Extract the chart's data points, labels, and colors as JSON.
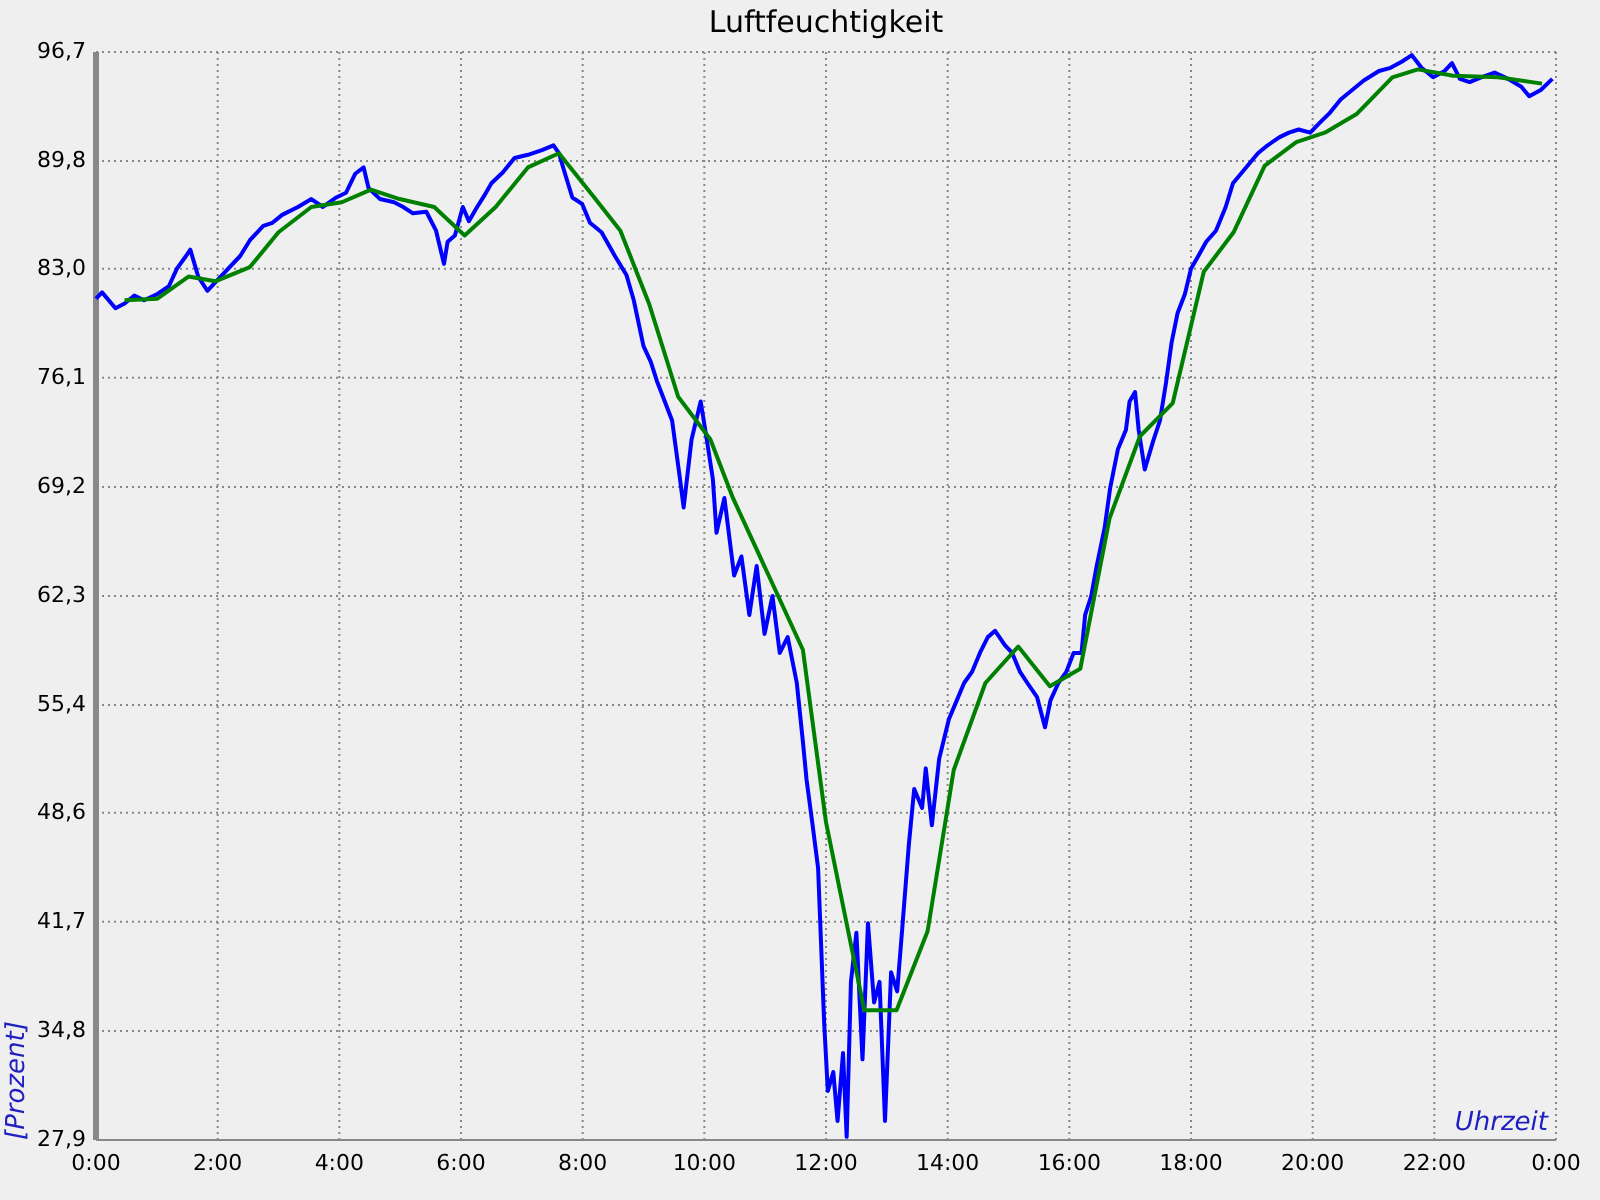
{
  "chart_data": {
    "type": "line",
    "title": "Luftfeuchtigkeit",
    "xlabel": "Uhrzeit",
    "ylabel": "[Prozent]",
    "xlim": [
      0,
      24
    ],
    "ylim": [
      27.9,
      96.7
    ],
    "grid": true,
    "xticks": [
      {
        "value": 0,
        "label": "0:00"
      },
      {
        "value": 2,
        "label": "2:00"
      },
      {
        "value": 4,
        "label": "4:00"
      },
      {
        "value": 6,
        "label": "6:00"
      },
      {
        "value": 8,
        "label": "8:00"
      },
      {
        "value": 10,
        "label": "10:00"
      },
      {
        "value": 12,
        "label": "12:00"
      },
      {
        "value": 14,
        "label": "14:00"
      },
      {
        "value": 16,
        "label": "16:00"
      },
      {
        "value": 18,
        "label": "18:00"
      },
      {
        "value": 20,
        "label": "20:00"
      },
      {
        "value": 22,
        "label": "22:00"
      },
      {
        "value": 24,
        "label": "0:00"
      }
    ],
    "yticks": [
      {
        "value": 27.9,
        "label": "27,9"
      },
      {
        "value": 34.8,
        "label": "34,8"
      },
      {
        "value": 41.7,
        "label": "41,7"
      },
      {
        "value": 48.6,
        "label": "48,6"
      },
      {
        "value": 55.4,
        "label": "55,4"
      },
      {
        "value": 62.3,
        "label": "62,3"
      },
      {
        "value": 69.2,
        "label": "69,2"
      },
      {
        "value": 76.1,
        "label": "76,1"
      },
      {
        "value": 83.0,
        "label": "83,0"
      },
      {
        "value": 89.8,
        "label": "89,8"
      },
      {
        "value": 96.7,
        "label": "96,7"
      }
    ],
    "series": [
      {
        "color": "#0000ff",
        "x": [
          0,
          0.1,
          0.32,
          0.47,
          0.63,
          0.79,
          1.01,
          1.2,
          1.33,
          1.48,
          1.55,
          1.68,
          1.83,
          2.05,
          2.37,
          2.53,
          2.75,
          2.9,
          3.06,
          3.32,
          3.54,
          3.73,
          3.95,
          4.11,
          4.26,
          4.4,
          4.48,
          4.67,
          4.9,
          5.05,
          5.21,
          5.43,
          5.59,
          5.72,
          5.78,
          5.9,
          6.03,
          6.13,
          6.25,
          6.38,
          6.5,
          6.69,
          6.88,
          7.1,
          7.33,
          7.52,
          7.61,
          7.71,
          7.83,
          7.99,
          8.12,
          8.31,
          8.53,
          8.72,
          8.84,
          9.0,
          9.12,
          9.22,
          9.35,
          9.47,
          9.6,
          9.66,
          9.79,
          9.94,
          10.04,
          10.14,
          10.2,
          10.33,
          10.49,
          10.61,
          10.74,
          10.86,
          10.99,
          11.12,
          11.24,
          11.37,
          11.52,
          11.62,
          11.68,
          11.78,
          11.87,
          11.97,
          12.03,
          12.12,
          12.19,
          12.28,
          12.34,
          12.41,
          12.5,
          12.6,
          12.69,
          12.79,
          12.88,
          12.97,
          13.07,
          13.17,
          13.26,
          13.36,
          13.45,
          13.58,
          13.64,
          13.74,
          13.86,
          14.02,
          14.15,
          14.27,
          14.4,
          14.53,
          14.66,
          14.78,
          14.94,
          15.06,
          15.19,
          15.31,
          15.47,
          15.6,
          15.69,
          15.82,
          15.95,
          16.07,
          16.2,
          16.26,
          16.36,
          16.45,
          16.58,
          16.67,
          16.8,
          16.93,
          16.99,
          17.08,
          17.14,
          17.24,
          17.37,
          17.49,
          17.59,
          17.68,
          17.78,
          17.9,
          18.0,
          18.12,
          18.25,
          18.41,
          18.57,
          18.69,
          18.82,
          18.95,
          19.1,
          19.26,
          19.45,
          19.61,
          19.77,
          19.96,
          20.11,
          20.27,
          20.46,
          20.65,
          20.84,
          21.09,
          21.28,
          21.47,
          21.63,
          21.79,
          21.98,
          22.17,
          22.29,
          22.42,
          22.58,
          22.77,
          22.99,
          23.21,
          23.43,
          23.56,
          23.75,
          23.94
        ],
        "values": [
          81.1,
          81.5,
          80.5,
          80.8,
          81.3,
          81.0,
          81.4,
          81.9,
          83.0,
          83.8,
          84.2,
          82.5,
          81.6,
          82.5,
          83.8,
          84.8,
          85.7,
          85.9,
          86.4,
          86.9,
          87.4,
          86.9,
          87.5,
          87.8,
          89.0,
          89.4,
          88.1,
          87.4,
          87.2,
          86.9,
          86.5,
          86.6,
          85.4,
          83.3,
          84.7,
          85.1,
          86.9,
          86.0,
          86.8,
          87.6,
          88.4,
          89.1,
          90.0,
          90.2,
          90.5,
          90.8,
          90.3,
          89.0,
          87.5,
          87.1,
          85.9,
          85.3,
          83.8,
          82.6,
          81.0,
          78.1,
          77.1,
          75.9,
          74.6,
          73.4,
          69.7,
          67.9,
          72.2,
          74.6,
          72.2,
          69.7,
          66.3,
          68.5,
          63.6,
          64.8,
          61.1,
          64.2,
          59.9,
          62.3,
          58.7,
          59.7,
          56.8,
          53.1,
          50.7,
          47.8,
          45.1,
          35.3,
          31.0,
          32.2,
          29.1,
          33.4,
          28.1,
          37.9,
          41.0,
          33.0,
          41.6,
          36.6,
          37.9,
          29.1,
          38.5,
          37.3,
          41.6,
          46.5,
          50.1,
          48.9,
          51.4,
          47.8,
          52.0,
          54.5,
          55.7,
          56.8,
          57.5,
          58.7,
          59.7,
          60.1,
          59.2,
          58.7,
          57.5,
          56.8,
          55.9,
          54.0,
          55.7,
          56.8,
          57.5,
          58.7,
          58.7,
          61.1,
          62.3,
          64.2,
          66.6,
          69.1,
          71.6,
          72.8,
          74.6,
          75.2,
          72.8,
          70.3,
          72.0,
          73.4,
          75.8,
          78.3,
          80.2,
          81.4,
          83.0,
          83.8,
          84.7,
          85.4,
          86.9,
          88.4,
          89.0,
          89.6,
          90.3,
          90.8,
          91.3,
          91.6,
          91.8,
          91.6,
          92.2,
          92.8,
          93.7,
          94.3,
          94.9,
          95.5,
          95.7,
          96.1,
          96.5,
          95.7,
          95.1,
          95.5,
          96.0,
          95.0,
          94.8,
          95.1,
          95.4,
          95.0,
          94.5,
          93.9,
          94.3,
          95.0
        ]
      },
      {
        "color": "#008000",
        "x": [
          0.47,
          1.01,
          1.52,
          1.96,
          2.53,
          3.0,
          3.54,
          4.04,
          4.52,
          4.99,
          5.56,
          6.06,
          6.57,
          7.1,
          7.61,
          8.21,
          8.62,
          9.09,
          9.57,
          10.1,
          10.47,
          11.62,
          12.0,
          12.63,
          13.16,
          13.67,
          14.1,
          14.62,
          15.16,
          15.68,
          16.18,
          16.66,
          17.16,
          17.7,
          18.21,
          18.7,
          19.21,
          19.73,
          20.2,
          20.73,
          21.31,
          21.73,
          22.31,
          23.05,
          23.77
        ],
        "values": [
          81.0,
          81.1,
          82.5,
          82.2,
          83.1,
          85.3,
          86.9,
          87.2,
          88.0,
          87.4,
          86.9,
          85.1,
          86.9,
          89.4,
          90.3,
          87.4,
          85.4,
          80.8,
          74.9,
          72.2,
          68.5,
          58.9,
          48.0,
          36.1,
          36.1,
          41.1,
          51.3,
          56.8,
          59.1,
          56.6,
          57.7,
          67.2,
          72.4,
          74.5,
          82.8,
          85.3,
          89.5,
          91.0,
          91.6,
          92.8,
          95.1,
          95.6,
          95.2,
          95.1,
          94.7
        ]
      }
    ]
  }
}
